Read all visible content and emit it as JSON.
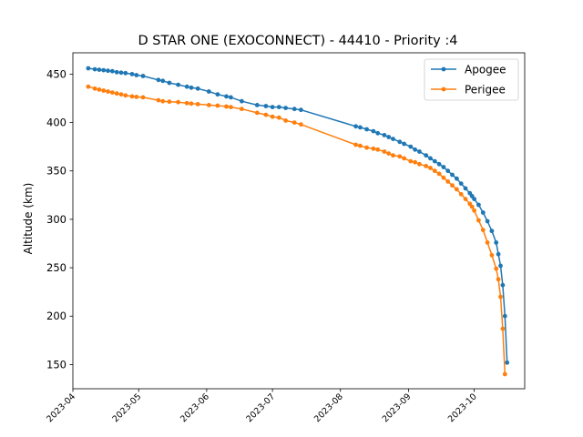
{
  "chart_data": {
    "type": "line",
    "title": "D STAR ONE (EXOCONNECT) - 44410 - Priority :4",
    "xlabel": "",
    "ylabel": "Altitude (km)",
    "x_type": "date",
    "xlim": [
      "2023-04-01",
      "2023-10-24"
    ],
    "ylim": [
      125,
      472
    ],
    "x_ticks": [
      "2023-04",
      "2023-05",
      "2023-06",
      "2023-07",
      "2023-08",
      "2023-09",
      "2023-10"
    ],
    "y_ticks": [
      150,
      200,
      250,
      300,
      350,
      400,
      450
    ],
    "grid": false,
    "legend": "top-right",
    "series": [
      {
        "name": "Apogee",
        "color": "#1f77b4",
        "points": [
          [
            "2023-04-08",
            456
          ],
          [
            "2023-04-11",
            455
          ],
          [
            "2023-04-13",
            454.5
          ],
          [
            "2023-04-15",
            454
          ],
          [
            "2023-04-17",
            453.5
          ],
          [
            "2023-04-19",
            453
          ],
          [
            "2023-04-21",
            452
          ],
          [
            "2023-04-23",
            451.5
          ],
          [
            "2023-04-25",
            451
          ],
          [
            "2023-04-28",
            450
          ],
          [
            "2023-04-30",
            449
          ],
          [
            "2023-05-03",
            448
          ],
          [
            "2023-05-10",
            444
          ],
          [
            "2023-05-12",
            443
          ],
          [
            "2023-05-15",
            441
          ],
          [
            "2023-05-19",
            439
          ],
          [
            "2023-05-23",
            437
          ],
          [
            "2023-05-25",
            436
          ],
          [
            "2023-05-28",
            435
          ],
          [
            "2023-06-02",
            432
          ],
          [
            "2023-06-06",
            429
          ],
          [
            "2023-06-10",
            427
          ],
          [
            "2023-06-12",
            426
          ],
          [
            "2023-06-17",
            422
          ],
          [
            "2023-06-24",
            418
          ],
          [
            "2023-06-28",
            417
          ],
          [
            "2023-07-01",
            416
          ],
          [
            "2023-07-04",
            416
          ],
          [
            "2023-07-07",
            415
          ],
          [
            "2023-07-11",
            414
          ],
          [
            "2023-07-14",
            413
          ],
          [
            "2023-08-08",
            396
          ],
          [
            "2023-08-10",
            395
          ],
          [
            "2023-08-13",
            393
          ],
          [
            "2023-08-16",
            391
          ],
          [
            "2023-08-18",
            389
          ],
          [
            "2023-08-21",
            387
          ],
          [
            "2023-08-23",
            385
          ],
          [
            "2023-08-25",
            383
          ],
          [
            "2023-08-28",
            380
          ],
          [
            "2023-08-30",
            378
          ],
          [
            "2023-09-02",
            375
          ],
          [
            "2023-09-04",
            372
          ],
          [
            "2023-09-06",
            370
          ],
          [
            "2023-09-09",
            366
          ],
          [
            "2023-09-11",
            363
          ],
          [
            "2023-09-13",
            360
          ],
          [
            "2023-09-15",
            357
          ],
          [
            "2023-09-17",
            354
          ],
          [
            "2023-09-19",
            350
          ],
          [
            "2023-09-21",
            346
          ],
          [
            "2023-09-23",
            342
          ],
          [
            "2023-09-25",
            337
          ],
          [
            "2023-09-27",
            332
          ],
          [
            "2023-09-29",
            327
          ],
          [
            "2023-09-30",
            324
          ],
          [
            "2023-10-01",
            321
          ],
          [
            "2023-10-03",
            315
          ],
          [
            "2023-10-05",
            307
          ],
          [
            "2023-10-07",
            298
          ],
          [
            "2023-10-09",
            288
          ],
          [
            "2023-10-11",
            276
          ],
          [
            "2023-10-12",
            264
          ],
          [
            "2023-10-13",
            252
          ],
          [
            "2023-10-14",
            232
          ],
          [
            "2023-10-15",
            200
          ],
          [
            "2023-10-16",
            152
          ]
        ]
      },
      {
        "name": "Perigee",
        "color": "#ff7f0e",
        "points": [
          [
            "2023-04-08",
            437
          ],
          [
            "2023-04-11",
            435
          ],
          [
            "2023-04-13",
            434
          ],
          [
            "2023-04-15",
            433
          ],
          [
            "2023-04-17",
            432
          ],
          [
            "2023-04-19",
            431
          ],
          [
            "2023-04-21",
            430
          ],
          [
            "2023-04-23",
            429
          ],
          [
            "2023-04-25",
            428
          ],
          [
            "2023-04-28",
            427
          ],
          [
            "2023-04-30",
            426.5
          ],
          [
            "2023-05-03",
            426
          ],
          [
            "2023-05-10",
            423
          ],
          [
            "2023-05-12",
            422
          ],
          [
            "2023-05-15",
            421.5
          ],
          [
            "2023-05-19",
            421
          ],
          [
            "2023-05-23",
            420
          ],
          [
            "2023-05-25",
            419.5
          ],
          [
            "2023-05-28",
            419
          ],
          [
            "2023-06-02",
            418
          ],
          [
            "2023-06-06",
            417.5
          ],
          [
            "2023-06-10",
            416.5
          ],
          [
            "2023-06-12",
            416
          ],
          [
            "2023-06-17",
            414
          ],
          [
            "2023-06-24",
            410
          ],
          [
            "2023-06-28",
            408
          ],
          [
            "2023-07-01",
            406
          ],
          [
            "2023-07-04",
            405
          ],
          [
            "2023-07-07",
            402
          ],
          [
            "2023-07-11",
            400
          ],
          [
            "2023-07-14",
            398
          ],
          [
            "2023-08-08",
            377
          ],
          [
            "2023-08-10",
            376
          ],
          [
            "2023-08-13",
            374
          ],
          [
            "2023-08-16",
            373
          ],
          [
            "2023-08-18",
            372
          ],
          [
            "2023-08-21",
            370
          ],
          [
            "2023-08-23",
            368
          ],
          [
            "2023-08-25",
            366
          ],
          [
            "2023-08-28",
            365
          ],
          [
            "2023-08-30",
            363
          ],
          [
            "2023-09-02",
            360
          ],
          [
            "2023-09-04",
            359
          ],
          [
            "2023-09-06",
            357
          ],
          [
            "2023-09-09",
            355
          ],
          [
            "2023-09-11",
            353
          ],
          [
            "2023-09-13",
            350
          ],
          [
            "2023-09-15",
            347
          ],
          [
            "2023-09-17",
            343
          ],
          [
            "2023-09-19",
            339
          ],
          [
            "2023-09-21",
            335
          ],
          [
            "2023-09-23",
            331
          ],
          [
            "2023-09-25",
            326
          ],
          [
            "2023-09-27",
            321
          ],
          [
            "2023-09-29",
            316
          ],
          [
            "2023-09-30",
            313
          ],
          [
            "2023-10-01",
            309
          ],
          [
            "2023-10-03",
            299
          ],
          [
            "2023-10-05",
            289
          ],
          [
            "2023-10-07",
            276
          ],
          [
            "2023-10-09",
            263
          ],
          [
            "2023-10-11",
            249
          ],
          [
            "2023-10-12",
            238
          ],
          [
            "2023-10-13",
            220
          ],
          [
            "2023-10-14",
            187
          ],
          [
            "2023-10-15",
            140
          ]
        ]
      }
    ]
  }
}
